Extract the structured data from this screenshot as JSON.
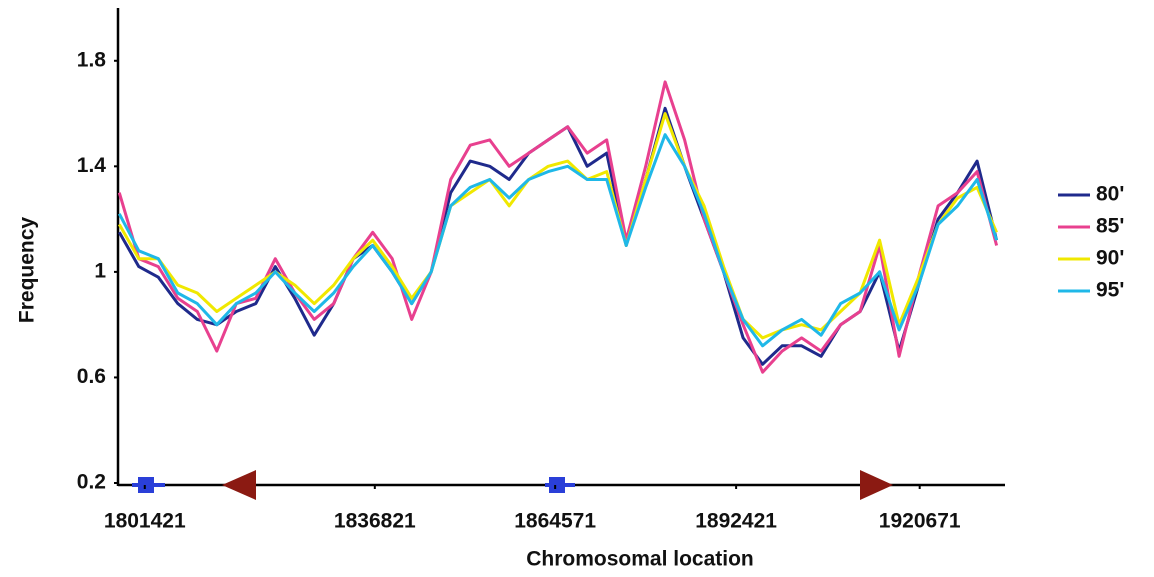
{
  "chart_data": {
    "type": "line",
    "xlabel": "Chromosomal location",
    "ylabel": "Frequency",
    "x": [
      1797500,
      1800500,
      1803500,
      1806500,
      1809500,
      1812500,
      1815500,
      1818500,
      1821500,
      1824500,
      1827500,
      1830500,
      1833500,
      1836500,
      1839500,
      1842500,
      1845500,
      1848500,
      1851500,
      1854500,
      1857500,
      1860500,
      1863500,
      1866500,
      1869500,
      1872500,
      1875500,
      1878500,
      1881500,
      1884500,
      1887500,
      1890500,
      1893500,
      1896500,
      1899500,
      1902500,
      1905500,
      1908500,
      1911500,
      1914500,
      1917500,
      1920500,
      1923500,
      1926500,
      1929500,
      1932500
    ],
    "series": [
      {
        "name": "80'",
        "color": "#1f2a8c",
        "values": [
          1.15,
          1.02,
          0.98,
          0.88,
          0.82,
          0.8,
          0.85,
          0.88,
          1.02,
          0.9,
          0.76,
          0.88,
          1.05,
          1.1,
          1.0,
          0.88,
          1.0,
          1.3,
          1.42,
          1.4,
          1.35,
          1.45,
          1.5,
          1.55,
          1.4,
          1.45,
          1.1,
          1.35,
          1.62,
          1.4,
          1.2,
          1.0,
          0.75,
          0.65,
          0.72,
          0.72,
          0.68,
          0.8,
          0.85,
          1.0,
          0.7,
          0.95,
          1.2,
          1.3,
          1.42,
          1.12
        ]
      },
      {
        "name": "85'",
        "color": "#e8408f",
        "values": [
          1.3,
          1.05,
          1.02,
          0.9,
          0.85,
          0.7,
          0.88,
          0.9,
          1.05,
          0.92,
          0.82,
          0.88,
          1.05,
          1.15,
          1.05,
          0.82,
          1.0,
          1.35,
          1.48,
          1.5,
          1.4,
          1.45,
          1.5,
          1.55,
          1.45,
          1.5,
          1.12,
          1.4,
          1.72,
          1.5,
          1.2,
          1.0,
          0.8,
          0.62,
          0.7,
          0.75,
          0.7,
          0.8,
          0.85,
          1.1,
          0.68,
          0.98,
          1.25,
          1.3,
          1.38,
          1.1
        ]
      },
      {
        "name": "90'",
        "color": "#f0e800",
        "values": [
          1.18,
          1.05,
          1.05,
          0.95,
          0.92,
          0.85,
          0.9,
          0.95,
          1.0,
          0.95,
          0.88,
          0.95,
          1.05,
          1.12,
          1.02,
          0.9,
          1.0,
          1.25,
          1.3,
          1.35,
          1.25,
          1.35,
          1.4,
          1.42,
          1.35,
          1.38,
          1.1,
          1.35,
          1.6,
          1.4,
          1.25,
          1.02,
          0.82,
          0.75,
          0.78,
          0.8,
          0.78,
          0.85,
          0.92,
          1.12,
          0.8,
          0.98,
          1.18,
          1.28,
          1.32,
          1.15
        ]
      },
      {
        "name": "95'",
        "color": "#1fb8e8",
        "values": [
          1.22,
          1.08,
          1.05,
          0.92,
          0.88,
          0.8,
          0.88,
          0.92,
          1.0,
          0.92,
          0.85,
          0.92,
          1.02,
          1.1,
          1.0,
          0.88,
          1.0,
          1.25,
          1.32,
          1.35,
          1.28,
          1.35,
          1.38,
          1.4,
          1.35,
          1.35,
          1.1,
          1.32,
          1.52,
          1.4,
          1.22,
          1.0,
          0.82,
          0.72,
          0.78,
          0.82,
          0.76,
          0.88,
          0.92,
          1.0,
          0.78,
          0.95,
          1.18,
          1.25,
          1.35,
          1.12
        ]
      }
    ],
    "xlim": [
      1797300,
      1933800
    ],
    "xticks": [
      1801421,
      1836821,
      1864571,
      1892421,
      1920671
    ],
    "ylim": [
      0.2,
      2.0
    ],
    "yticks": [
      0.2,
      0.6,
      1,
      1.4,
      1.8
    ],
    "grid": false,
    "legend": "right"
  }
}
